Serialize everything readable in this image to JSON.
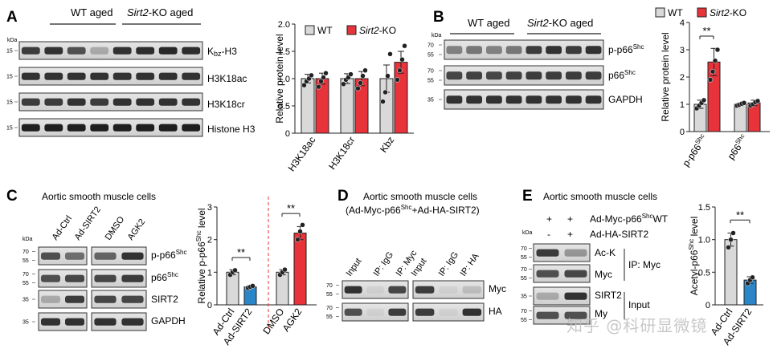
{
  "colors": {
    "wt": "#d9d9d9",
    "ko": "#e8333a",
    "ctrl": "#d9d9d9",
    "treat": "#e8333a",
    "sirt2": "#2a86c8",
    "axis": "#222222",
    "dash": "#e8333a"
  },
  "panels": {
    "A": {
      "letter": "A",
      "header_left": "WT aged",
      "header_right_italic": "Sirt2",
      "header_right": "-KO aged",
      "kda": "kDa",
      "markers": [
        "15",
        "15",
        "15",
        "15"
      ],
      "blots": [
        "Kbz-H3",
        "H3K18ac",
        "H3K18cr",
        "Histone H3"
      ],
      "blot_row_labels": {
        "kbz_prefix": "K",
        "kbz_sub": "bz",
        "kbz_suffix": "-H3"
      }
    },
    "B": {
      "letter": "B",
      "header_left": "WT aged",
      "header_right_italic": "Sirt2",
      "header_right": "-KO aged",
      "kda": "kDa",
      "marker_pairs": [
        [
          "70",
          "55"
        ],
        [
          "70",
          "55"
        ],
        [
          "35"
        ]
      ],
      "blots": {
        "p_p66": "p-p66",
        "p66": "p66",
        "gapdh": "GAPDH",
        "shc": "Shc"
      }
    },
    "C": {
      "letter": "C",
      "subtitle": "Aortic smooth muscle cells",
      "kda": "kDa",
      "lanes": [
        "Ad-Ctrl",
        "Ad-SIRT2",
        "DMSO",
        "AGK2"
      ],
      "markers": [
        "70",
        "55",
        "70",
        "55",
        "35",
        "35"
      ],
      "blots": {
        "p_p66": "p-p66",
        "p66": "p66",
        "sirt2": "SIRT2",
        "gapdh": "GAPDH",
        "shc": "Shc"
      }
    },
    "D": {
      "letter": "D",
      "subtitle": "Aortic smooth muscle cells",
      "subtitle2_a": "(Ad-Myc-p66",
      "subtitle2_sup": "Shc",
      "subtitle2_b": "+Ad-HA-SIRT2)",
      "lanes": [
        "Input",
        "IP: IgG",
        "IP: Myc",
        "Input",
        "IP: IgG",
        "IP: HA"
      ],
      "markers": [
        "70",
        "55",
        "70",
        "55"
      ],
      "blots": [
        "Myc",
        "HA"
      ]
    },
    "E": {
      "letter": "E",
      "subtitle": "Aortic smooth muscle cells",
      "kda": "kDa",
      "row1_signs": [
        "+",
        "+"
      ],
      "row1_label_a": "Ad-Myc-p66",
      "row1_label_sup": "Shc",
      "row1_label_b": "WT",
      "row2_signs": [
        "-",
        "+"
      ],
      "row2_label": "Ad-HA-SIRT2",
      "markers": [
        "70",
        "55",
        "70",
        "55",
        "35",
        "70"
      ],
      "blots": [
        "Ac-K",
        "Myc",
        "SIRT2",
        "My"
      ],
      "group_ip": "IP: Myc",
      "group_input": "Input"
    }
  },
  "chart_data": [
    {
      "id": "A",
      "type": "bar",
      "categories": [
        "H3K18ac",
        "H3K18cr",
        "Kbz"
      ],
      "series": [
        {
          "name": "WT",
          "values": [
            1.0,
            1.0,
            1.0
          ],
          "err": [
            0.08,
            0.09,
            0.25
          ]
        },
        {
          "name": "Sirt2-KO",
          "values": [
            1.0,
            1.0,
            1.3
          ],
          "err": [
            0.1,
            0.13,
            0.2
          ]
        }
      ],
      "points": [
        [
          [
            0.88,
            0.95,
            1.0,
            1.06
          ],
          [
            0.85,
            0.95,
            1.02,
            1.1
          ]
        ],
        [
          [
            0.9,
            0.98,
            1.02,
            1.08
          ],
          [
            0.82,
            0.92,
            1.05,
            1.15
          ]
        ],
        [
          [
            0.58,
            0.75,
            1.05,
            1.45
          ],
          [
            0.98,
            1.15,
            1.35,
            1.6
          ]
        ]
      ],
      "ylabel": "Relative protein level",
      "ylim": [
        0,
        2
      ],
      "yticks": [
        "0",
        "0.5",
        "1.0",
        "1.5",
        "2.0"
      ],
      "legend": [
        {
          "label": "WT"
        },
        {
          "label_italic": "Sirt2",
          "label": "-KO"
        }
      ],
      "legend_placement": "top"
    },
    {
      "id": "B",
      "type": "bar",
      "categories": [
        "p-p66",
        "p66"
      ],
      "category_sup": "Shc",
      "series": [
        {
          "name": "WT",
          "values": [
            1.0,
            1.0
          ],
          "err": [
            0.15,
            0.05
          ]
        },
        {
          "name": "Sirt2-KO",
          "values": [
            2.55,
            1.05
          ],
          "err": [
            0.5,
            0.1
          ]
        }
      ],
      "points": [
        [
          [
            0.85,
            0.95,
            1.05,
            1.15
          ],
          [
            1.9,
            2.2,
            2.6,
            3.0
          ]
        ],
        [
          [
            0.95,
            0.98,
            1.02,
            1.05
          ],
          [
            0.95,
            1.0,
            1.08,
            1.12
          ]
        ]
      ],
      "significance": [
        {
          "category": "p-p66",
          "label": "**"
        }
      ],
      "ylabel": "Relative protein level",
      "ylim": [
        0,
        4
      ],
      "yticks": [
        "0",
        "1",
        "2",
        "3",
        "4"
      ],
      "legend": [
        {
          "label": "WT"
        },
        {
          "label_italic": "Sirt2",
          "label": "-KO"
        }
      ],
      "legend_placement": "top"
    },
    {
      "id": "C",
      "type": "bar",
      "categories": [
        "Ad-Ctrl",
        "Ad-SIRT2",
        "DMSO",
        "AGK2"
      ],
      "values": [
        1.0,
        0.55,
        1.0,
        2.2
      ],
      "err": [
        0.08,
        0.04,
        0.08,
        0.2
      ],
      "points": [
        [
          0.92,
          1.0,
          1.06
        ],
        [
          0.52,
          0.55,
          0.58
        ],
        [
          0.92,
          1.0,
          1.08
        ],
        [
          2.0,
          2.25,
          2.45
        ]
      ],
      "significance": [
        {
          "pair": [
            0,
            1
          ],
          "label": "**"
        },
        {
          "pair": [
            2,
            3
          ],
          "label": "**"
        }
      ],
      "ylabel_a": "Relative p-p66",
      "ylabel_sup": "Shc",
      "ylabel_b": " level",
      "ylim": [
        0,
        3
      ],
      "yticks": [
        "0",
        "1",
        "2",
        "3"
      ]
    },
    {
      "id": "E",
      "type": "bar",
      "categories": [
        "Ad-Ctrl",
        "Ad-SIRT2"
      ],
      "values": [
        1.0,
        0.38
      ],
      "err": [
        0.1,
        0.05
      ],
      "points": [
        [
          0.88,
          1.0,
          1.1
        ],
        [
          0.33,
          0.38,
          0.42
        ]
      ],
      "significance": [
        {
          "pair": [
            0,
            1
          ],
          "label": "**"
        }
      ],
      "ylabel_a": "Acetyl-p66",
      "ylabel_sup": "Shc",
      "ylabel_b": " level",
      "ylim": [
        0,
        1.5
      ],
      "yticks": [
        "0",
        "0.5",
        "1.0",
        "1.5"
      ]
    }
  ],
  "watermark": "知乎 @科研显微镜"
}
